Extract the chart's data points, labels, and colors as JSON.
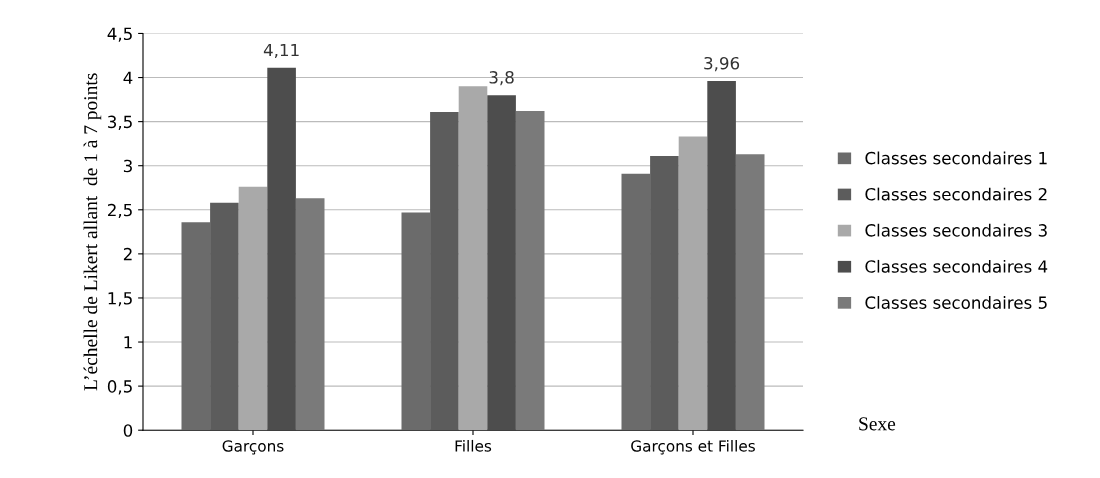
{
  "chart_data": {
    "type": "bar",
    "xlabel": "Sexe",
    "ylabel": "L’échelle de Likert allant  de 1 à 7 points",
    "categories": [
      "Garçons",
      "Filles",
      "Garçons et Filles"
    ],
    "series": [
      {
        "name": "Classes secondaires 1",
        "color": "#6b6b6b",
        "values": [
          2.36,
          2.47,
          2.91
        ]
      },
      {
        "name": "Classes secondaires 2",
        "color": "#5c5c5c",
        "values": [
          2.58,
          3.61,
          3.11
        ]
      },
      {
        "name": "Classes secondaires 3",
        "color": "#a9a9a9",
        "values": [
          2.76,
          3.9,
          3.33
        ]
      },
      {
        "name": "Classes secondaires 4",
        "color": "#4d4d4d",
        "values": [
          4.11,
          3.8,
          3.96
        ],
        "value_labels": [
          "4,11",
          "3,8",
          "3,96"
        ]
      },
      {
        "name": "Classes secondaires 5",
        "color": "#7a7a7a",
        "values": [
          2.63,
          3.62,
          3.13
        ]
      }
    ],
    "ylim": [
      0,
      4.5
    ],
    "yticks": [
      0,
      {
        "value": 0.5,
        "label": "0,5"
      },
      1,
      {
        "value": 1.5,
        "label": "1,5"
      },
      2,
      {
        "value": 2.5,
        "label": "2,5"
      },
      3,
      {
        "value": 3.5,
        "label": "3,5"
      },
      4,
      {
        "value": 4.5,
        "label": "4,5"
      }
    ],
    "grid": "y",
    "legend": "right"
  }
}
